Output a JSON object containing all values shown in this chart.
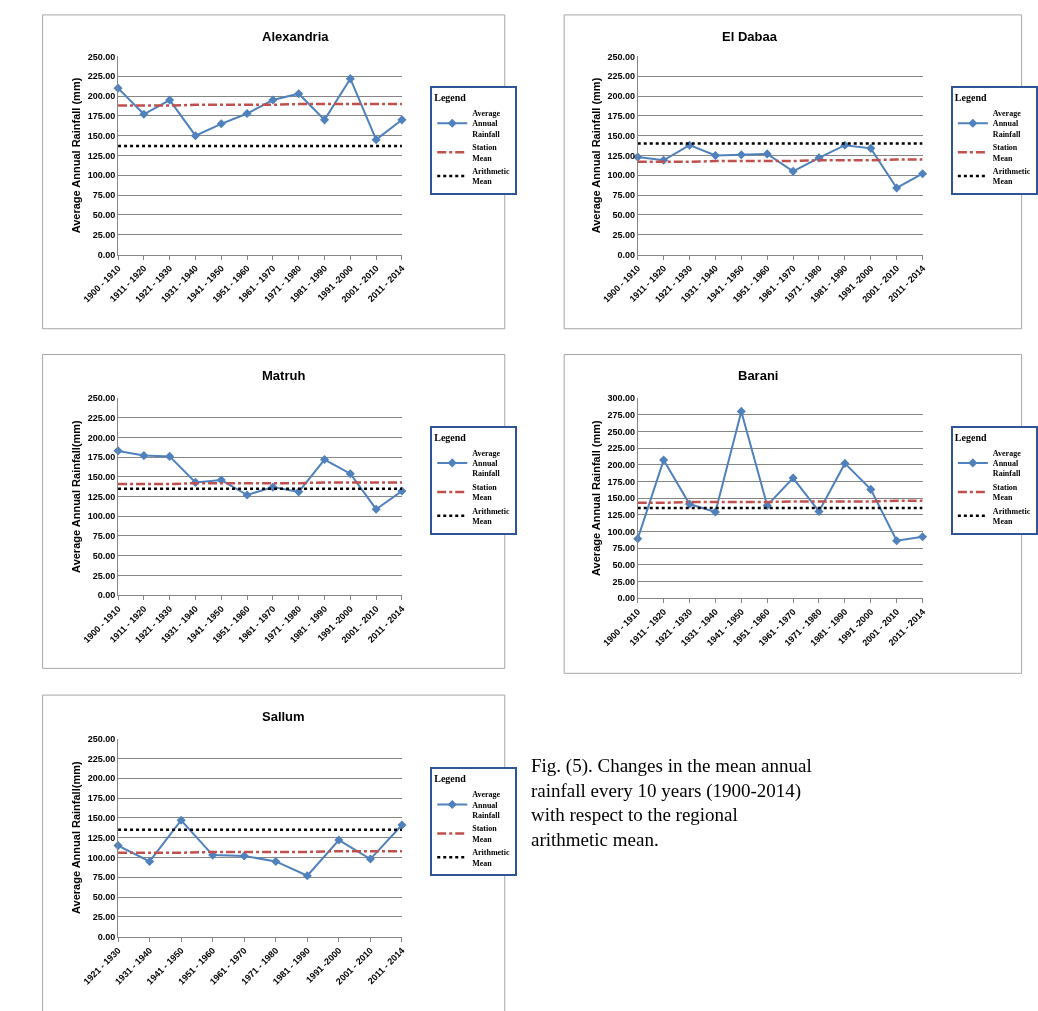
{
  "chart_data": [
    {
      "type": "line",
      "title": "Alexandria",
      "ylabel": "Average Annual Rainfall (mm)",
      "legend_title": "Legend",
      "legend": "right",
      "grid": "y",
      "categories": [
        "1900 - 1910",
        "1911 - 1920",
        "1921 - 1930",
        "1931 - 1940",
        "1941 - 1950",
        "1951 - 1960",
        "1961 - 1970",
        "1971 - 1980",
        "1981 - 1990",
        "1991 -2000",
        "2001 - 2010",
        "2011 - 2014"
      ],
      "ylim": [
        0,
        250
      ],
      "yticks": [
        {
          "value": 0,
          "label": "0.00"
        },
        {
          "value": 25,
          "label": "25.00"
        },
        {
          "value": 50,
          "label": "50.00"
        },
        {
          "value": 75,
          "label": "75.00"
        },
        {
          "value": 100,
          "label": "100.00"
        },
        {
          "value": 125,
          "label": "125.00"
        },
        {
          "value": 150,
          "label": "150.00"
        },
        {
          "value": 175,
          "label": "175.00"
        },
        {
          "value": 200,
          "label": "200.00"
        },
        {
          "value": 225,
          "label": "225.00"
        },
        {
          "value": 250,
          "label": "250.00"
        }
      ],
      "series": [
        {
          "name": "Average Annual Rainfall",
          "color": "#4f81bd",
          "line_style": "solid",
          "marker": "diamond",
          "values": [
            210,
            177,
            195,
            150,
            165,
            178,
            195,
            203,
            170,
            222,
            145,
            170
          ]
        },
        {
          "name": "Station Mean",
          "color": "#c0504d",
          "line_style": "dashed",
          "marker": "none",
          "values": [
            188,
            188,
            188,
            189,
            189,
            189,
            189,
            190,
            190,
            190,
            190,
            190
          ]
        },
        {
          "name": "Arithmetic Mean",
          "color": "#000000",
          "line_style": "dotted",
          "marker": "none",
          "values": [
            137,
            137,
            137,
            137,
            137,
            137,
            137,
            137,
            137,
            137,
            137,
            137
          ]
        }
      ]
    },
    {
      "type": "line",
      "title": "El Dabaa",
      "ylabel": "Average Annual Rainfall (mm)",
      "legend_title": "Legend",
      "legend": "right",
      "grid": "y",
      "categories": [
        "1900 - 1910",
        "1911 - 1920",
        "1921 - 1930",
        "1931 - 1940",
        "1941 - 1950",
        "1951 - 1960",
        "1961 - 1970",
        "1971 - 1980",
        "1981 - 1990",
        "1991 -2000",
        "2001 - 2010",
        "2011 - 2014"
      ],
      "ylim": [
        0,
        250
      ],
      "yticks": [
        {
          "value": 0,
          "label": "0.00"
        },
        {
          "value": 25,
          "label": "25.00"
        },
        {
          "value": 50,
          "label": "50.00"
        },
        {
          "value": 75,
          "label": "75.00"
        },
        {
          "value": 100,
          "label": "100.00"
        },
        {
          "value": 125,
          "label": "125.00"
        },
        {
          "value": 150,
          "label": "150.00"
        },
        {
          "value": 175,
          "label": "175.00"
        },
        {
          "value": 200,
          "label": "200.00"
        },
        {
          "value": 225,
          "label": "225.00"
        },
        {
          "value": 250,
          "label": "250.00"
        }
      ],
      "series": [
        {
          "name": "Average Annual Rainfall",
          "color": "#4f81bd",
          "line_style": "solid",
          "marker": "diamond",
          "values": [
            123,
            119,
            138,
            125,
            126,
            127,
            105,
            122,
            138,
            134,
            84,
            102
          ]
        },
        {
          "name": "Station Mean",
          "color": "#c0504d",
          "line_style": "dashed",
          "marker": "none",
          "values": [
            117,
            117,
            117,
            118,
            118,
            118,
            118,
            119,
            119,
            119,
            120,
            120
          ]
        },
        {
          "name": "Arithmetic Mean",
          "color": "#000000",
          "line_style": "dotted",
          "marker": "none",
          "values": [
            140,
            140,
            140,
            140,
            140,
            140,
            140,
            140,
            140,
            140,
            140,
            140
          ]
        }
      ]
    },
    {
      "type": "line",
      "title": "Matruh",
      "ylabel": "Average Annual Rainfall(mm)",
      "legend_title": "Legend",
      "legend": "right",
      "grid": "y",
      "categories": [
        "1900 - 1910",
        "1911 - 1920",
        "1921 - 1930",
        "1931 - 1940",
        "1941 - 1950",
        "1951 - 1960",
        "1961 - 1970",
        "1971 - 1980",
        "1981 - 1990",
        "1991 -2000",
        "2001 - 2010",
        "2011 - 2014"
      ],
      "ylim": [
        0,
        250
      ],
      "yticks": [
        {
          "value": 0,
          "label": "0.00"
        },
        {
          "value": 25,
          "label": "25.00"
        },
        {
          "value": 50,
          "label": "50.00"
        },
        {
          "value": 75,
          "label": "75.00"
        },
        {
          "value": 100,
          "label": "100.00"
        },
        {
          "value": 125,
          "label": "125.00"
        },
        {
          "value": 150,
          "label": "150.00"
        },
        {
          "value": 175,
          "label": "175.00"
        },
        {
          "value": 200,
          "label": "200.00"
        },
        {
          "value": 225,
          "label": "225.00"
        },
        {
          "value": 250,
          "label": "250.00"
        }
      ],
      "series": [
        {
          "name": "Average Annual Rainfall",
          "color": "#4f81bd",
          "line_style": "solid",
          "marker": "diamond",
          "values": [
            183,
            177,
            176,
            143,
            146,
            127,
            137,
            131,
            172,
            154,
            109,
            132
          ]
        },
        {
          "name": "Station Mean",
          "color": "#c0504d",
          "line_style": "dashed",
          "marker": "none",
          "values": [
            141,
            141,
            141,
            142,
            142,
            142,
            142,
            142,
            143,
            143,
            143,
            143
          ]
        },
        {
          "name": "Arithmetic Mean",
          "color": "#000000",
          "line_style": "dotted",
          "marker": "none",
          "values": [
            135,
            135,
            135,
            135,
            135,
            135,
            135,
            135,
            135,
            135,
            135,
            135
          ]
        }
      ]
    },
    {
      "type": "line",
      "title": "Barani",
      "ylabel": "Average Annual Rainfall (mm)",
      "legend_title": "Legend",
      "legend": "right",
      "grid": "y",
      "categories": [
        "1900 - 1910",
        "1911 - 1920",
        "1921 - 1930",
        "1931 - 1940",
        "1941 - 1950",
        "1951 - 1960",
        "1961 - 1970",
        "1971 - 1980",
        "1981 - 1990",
        "1991 -2000",
        "2001 - 2010",
        "2011 - 2014"
      ],
      "ylim": [
        0,
        300
      ],
      "yticks": [
        {
          "value": 0,
          "label": "0.00"
        },
        {
          "value": 25,
          "label": "25.00"
        },
        {
          "value": 50,
          "label": "50.00"
        },
        {
          "value": 75,
          "label": "75.00"
        },
        {
          "value": 100,
          "label": "100.00"
        },
        {
          "value": 125,
          "label": "125.00"
        },
        {
          "value": 150,
          "label": "150.00"
        },
        {
          "value": 175,
          "label": "175.00"
        },
        {
          "value": 200,
          "label": "200.00"
        },
        {
          "value": 225,
          "label": "225.00"
        },
        {
          "value": 250,
          "label": "250.00"
        },
        {
          "value": 275,
          "label": "275.00"
        },
        {
          "value": 300,
          "label": "300.00"
        }
      ],
      "series": [
        {
          "name": "Average Annual Rainfall",
          "color": "#4f81bd",
          "line_style": "solid",
          "marker": "diamond",
          "values": [
            89,
            207,
            141,
            129,
            280,
            139,
            180,
            130,
            202,
            163,
            86,
            92
          ]
        },
        {
          "name": "Station Mean",
          "color": "#c0504d",
          "line_style": "dashed",
          "marker": "none",
          "values": [
            143,
            143,
            144,
            144,
            144,
            144,
            145,
            145,
            145,
            145,
            146,
            146
          ]
        },
        {
          "name": "Arithmetic Mean",
          "color": "#000000",
          "line_style": "dotted",
          "marker": "none",
          "values": [
            135,
            135,
            135,
            135,
            135,
            135,
            135,
            135,
            135,
            135,
            135,
            135
          ]
        }
      ]
    },
    {
      "type": "line",
      "title": "Sallum",
      "ylabel": "Average Annual Rainfall(mm)",
      "legend_title": "Legend",
      "legend": "right",
      "grid": "y",
      "categories": [
        "1921 - 1930",
        "1931 - 1940",
        "1941 - 1950",
        "1951 - 1960",
        "1961 - 1970",
        "1971 - 1980",
        "1981 - 1990",
        "1991 -2000",
        "2001 - 2010",
        "2011 - 2014"
      ],
      "ylim": [
        0,
        250
      ],
      "yticks": [
        {
          "value": 0,
          "label": "0.00"
        },
        {
          "value": 25,
          "label": "25.00"
        },
        {
          "value": 50,
          "label": "50.00"
        },
        {
          "value": 75,
          "label": "75.00"
        },
        {
          "value": 100,
          "label": "100.00"
        },
        {
          "value": 125,
          "label": "125.00"
        },
        {
          "value": 150,
          "label": "150.00"
        },
        {
          "value": 175,
          "label": "175.00"
        },
        {
          "value": 200,
          "label": "200.00"
        },
        {
          "value": 225,
          "label": "225.00"
        },
        {
          "value": 250,
          "label": "250.00"
        }
      ],
      "annotations": [
        "Fig. (5). Changes in the mean annual rainfall every 10 years (1900-2014) with respect to the regional arithmetic mean."
      ],
      "series": [
        {
          "name": "Average Annual Rainfall",
          "color": "#4f81bd",
          "line_style": "solid",
          "marker": "diamond",
          "values": [
            115,
            95,
            147,
            103,
            102,
            95,
            77,
            122,
            98,
            141
          ]
        },
        {
          "name": "Station Mean",
          "color": "#c0504d",
          "line_style": "dashed",
          "marker": "none",
          "values": [
            106,
            106,
            106,
            107,
            107,
            107,
            107,
            108,
            108,
            108
          ]
        },
        {
          "name": "Arithmetic Mean",
          "color": "#000000",
          "line_style": "dotted",
          "marker": "none",
          "values": [
            135,
            135,
            135,
            135,
            135,
            135,
            135,
            135,
            135,
            135
          ]
        }
      ]
    }
  ]
}
